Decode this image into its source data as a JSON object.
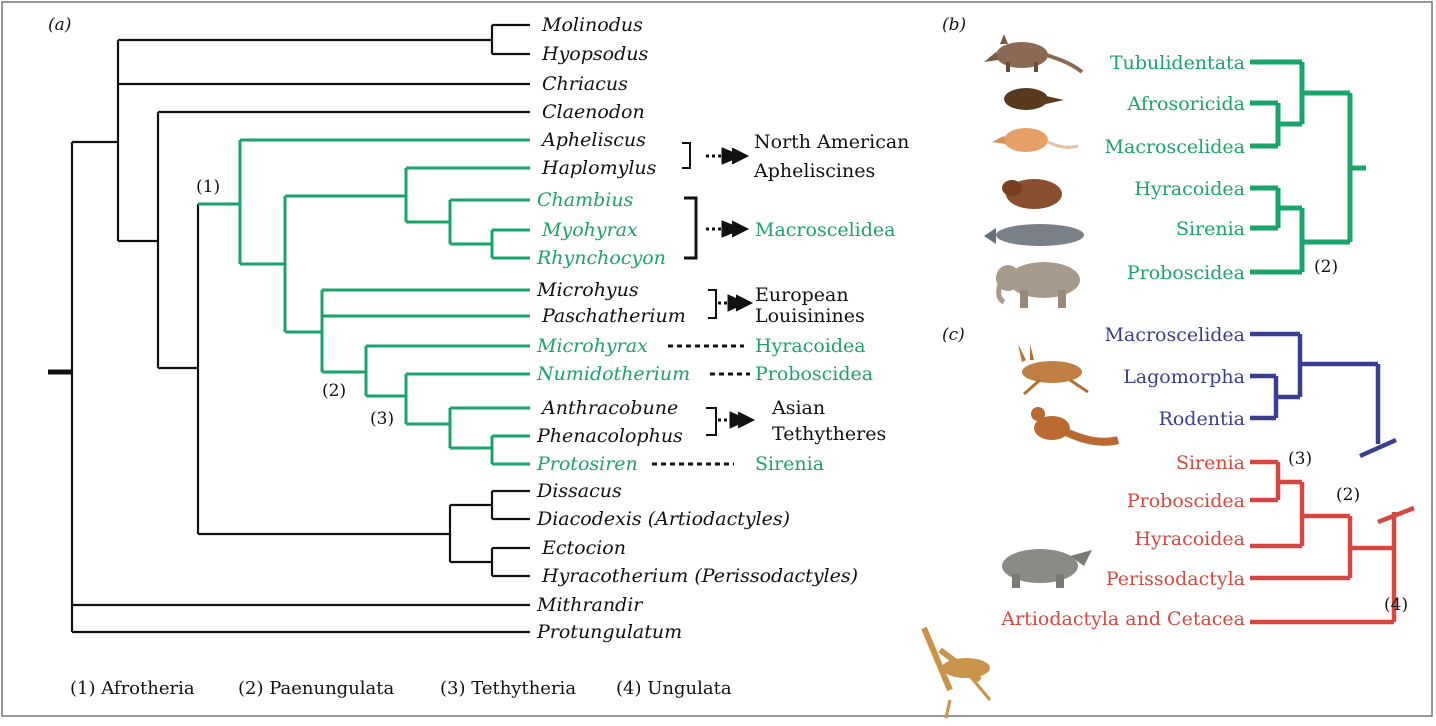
{
  "panel_labels": {
    "a": "(a)",
    "b": "(b)",
    "c": "(c)"
  },
  "panel_a": {
    "taxa": {
      "molinodus": "Molinodus",
      "hyopsodus": "Hyopsodus",
      "chriacus": "Chriacus",
      "claenodon": "Claenodon",
      "apheliscus": "Apheliscus",
      "haplomylus": "Haplomylus",
      "chambius": "Chambius",
      "myohyrax": "Myohyrax",
      "rhynchocyon": "Rhynchocyon",
      "microhyus": "Microhyus",
      "paschatherium": "Paschatherium",
      "microhyrax": "Microhyrax",
      "numidotherium": "Numidotherium",
      "anthracobune": "Anthracobune",
      "phenacolophus": "Phenacolophus",
      "protosiren": "Protosiren",
      "dissacus": "Dissacus",
      "diacodexis": "Diacodexis (Artiodactyles)",
      "ectocion": "Ectocion",
      "hyracotherium": "Hyracotherium (Perissodactyles)",
      "mithrandir": "Mithrandir",
      "protungulatum": "Protungulatum"
    },
    "groups": {
      "north_american_1": "North American",
      "north_american_2": "Apheliscines",
      "macroscelidea": "Macroscelidea",
      "european_1": "European",
      "european_2": "Louisinines",
      "hyracoidea": "Hyracoidea",
      "proboscidea": "Proboscidea",
      "asian_1": "Asian",
      "asian_2": "Tethytheres",
      "sirenia": "Sirenia"
    },
    "node_labels": {
      "n1": "(1)",
      "n2": "(2)",
      "n3": "(3)"
    }
  },
  "panel_b": {
    "taxa": [
      "Tubulidentata",
      "Afrosoricida",
      "Macroscelidea",
      "Hyracoidea",
      "Sirenia",
      "Proboscidea"
    ],
    "node_label": "(2)"
  },
  "panel_c": {
    "taxa_blue": [
      "Macroscelidea",
      "Lagomorpha",
      "Rodentia"
    ],
    "taxa_red": [
      "Sirenia",
      "Proboscidea",
      "Hyracoidea",
      "Perissodactyla",
      "Artiodactyla and Cetacea"
    ],
    "node_labels": {
      "n3": "(3)",
      "n2": "(2)",
      "n4": "(4)"
    }
  },
  "legend": {
    "l1": "(1) Afrotheria",
    "l2": "(2) Paenungulata",
    "l3": "(3) Tethytheria",
    "l4": "(4) Ungulata"
  },
  "colors": {
    "green": "#1aa36a",
    "blue": "#3b3d8e",
    "red": "#d8473f",
    "black": "#111111"
  },
  "icons": [
    "aardvark",
    "tenrec",
    "elephant-shrew",
    "hyrax",
    "manatee",
    "elephant",
    "hare",
    "squirrel",
    "rhinoceros",
    "giraffe"
  ]
}
